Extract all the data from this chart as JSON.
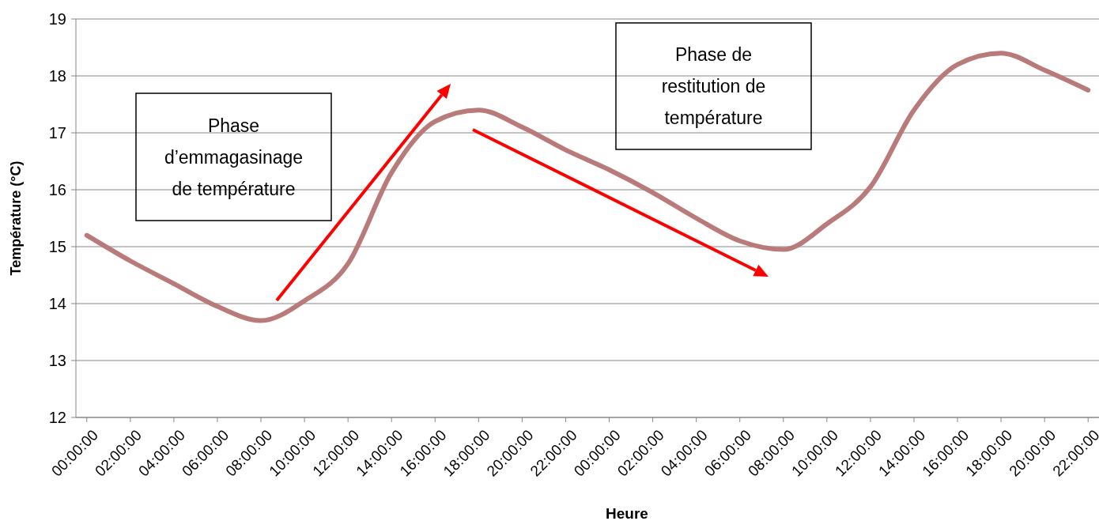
{
  "chart_data": {
    "type": "line",
    "xlabel": "Heure",
    "ylabel": "Température (°C)",
    "categories": [
      "00:00:00",
      "02:00:00",
      "04:00:00",
      "06:00:00",
      "08:00:00",
      "10:00:00",
      "12:00:00",
      "14:00:00",
      "16:00:00",
      "18:00:00",
      "20:00:00",
      "22:00:00",
      "00:00:00",
      "02:00:00",
      "04:00:00",
      "06:00:00",
      "08:00:00",
      "10:00:00",
      "12:00:00",
      "14:00:00",
      "16:00:00",
      "18:00:00",
      "20:00:00",
      "22:00:00"
    ],
    "series": [
      {
        "color": "#b97a7a",
        "values": [
          15.2,
          14.75,
          14.35,
          13.95,
          13.7,
          14.05,
          14.7,
          16.3,
          17.2,
          17.4,
          17.1,
          16.7,
          16.35,
          15.95,
          15.5,
          15.1,
          14.95,
          15.4,
          16.05,
          17.4,
          18.2,
          18.4,
          18.1,
          17.75
        ]
      }
    ],
    "ylim": [
      12,
      19
    ],
    "yticks": [
      12,
      13,
      14,
      15,
      16,
      17,
      18,
      19
    ],
    "grid": "y",
    "marker": "none",
    "line_style": "solid",
    "annotations": [
      "Phase d’emmagasinage de température",
      "Phase de restitution de température"
    ]
  }
}
